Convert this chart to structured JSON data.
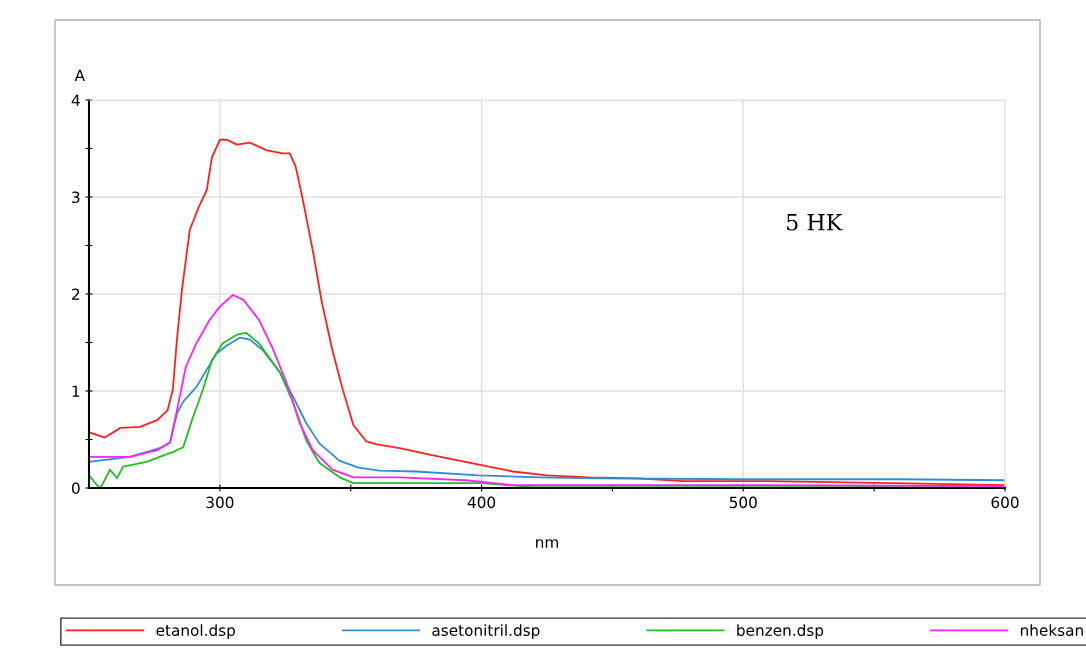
{
  "chart_data": {
    "type": "line",
    "xlabel": "nm",
    "ylabel": "A",
    "xlim": [
      250,
      600
    ],
    "xticks": [
      300,
      {
        "value": 350,
        "label": null
      },
      400,
      {
        "value": 450,
        "label": null
      },
      500,
      {
        "value": 550,
        "label": null
      },
      600
    ],
    "ylim": [
      0,
      4
    ],
    "yticks": [
      0,
      {
        "value": 0.5,
        "label": null
      },
      1,
      {
        "value": 1.5,
        "label": null
      },
      2,
      {
        "value": 2.5,
        "label": null
      },
      3,
      {
        "value": 3.5,
        "label": null
      },
      4
    ],
    "grid": true,
    "legend": "bottom",
    "marker": "none",
    "line_style": "solid",
    "annotations": [
      "5 HK"
    ],
    "series": [
      {
        "name": "etanol.dsp",
        "color": "#ff2020",
        "x": [
          250.4,
          256,
          262,
          269.5,
          276,
          280,
          282,
          283.6,
          285.5,
          288.5,
          292,
          295,
          297,
          300,
          302.7,
          306.5,
          311.5,
          318,
          324,
          326.7,
          329,
          331.7,
          335.5,
          339,
          343,
          347,
          351,
          356,
          360,
          368.7,
          381,
          390,
          399,
          412,
          425,
          441,
          460,
          477,
          509,
          557,
          600
        ],
        "values": [
          0.57,
          0.52,
          0.62,
          0.63,
          0.7,
          0.8,
          1.01,
          1.53,
          2.04,
          2.66,
          2.9,
          3.07,
          3.41,
          3.59,
          3.59,
          3.54,
          3.56,
          3.48,
          3.45,
          3.45,
          3.31,
          2.97,
          2.45,
          1.91,
          1.42,
          1.01,
          0.65,
          0.48,
          0.45,
          0.41,
          0.34,
          0.29,
          0.24,
          0.17,
          0.13,
          0.11,
          0.1,
          0.07,
          0.07,
          0.05,
          0.03
        ]
      },
      {
        "name": "asetonitril.dsp",
        "color": "#2d8fd0",
        "x": [
          250,
          265.6,
          277,
          281,
          283.6,
          286,
          291,
          295,
          298.8,
          302.7,
          307.6,
          311.5,
          316.4,
          323,
          328,
          333,
          338,
          345.8,
          353,
          361,
          375,
          399,
          422,
          445,
          500,
          560,
          600
        ],
        "values": [
          0.27,
          0.32,
          0.41,
          0.47,
          0.77,
          0.89,
          1.04,
          1.22,
          1.39,
          1.47,
          1.55,
          1.53,
          1.42,
          1.19,
          0.94,
          0.67,
          0.46,
          0.28,
          0.21,
          0.18,
          0.17,
          0.13,
          0.11,
          0.1,
          0.09,
          0.09,
          0.08
        ]
      },
      {
        "name": "benzen.dsp",
        "color": "#20c020",
        "x": [
          250,
          254,
          255,
          258,
          260.7,
          263,
          272,
          277,
          282,
          286,
          289.7,
          293.5,
          297,
          301,
          306.5,
          310,
          315,
          323,
          328,
          333,
          338,
          345.8,
          351,
          400,
          420,
          500,
          600
        ],
        "values": [
          0.13,
          0.0,
          0.03,
          0.19,
          0.1,
          0.22,
          0.27,
          0.32,
          0.37,
          0.42,
          0.73,
          1.01,
          1.32,
          1.49,
          1.58,
          1.6,
          1.49,
          1.19,
          0.88,
          0.49,
          0.26,
          0.11,
          0.05,
          0.05,
          0.01,
          0.01,
          0.01
        ]
      },
      {
        "name": "nheksan",
        "color": "#ff20ff",
        "x": [
          250,
          265.6,
          276,
          281,
          283.6,
          287,
          291,
          296,
          300,
          305,
          309,
          315,
          320,
          325.6,
          330.5,
          335.5,
          343,
          351,
          368.7,
          394,
          412,
          500,
          600
        ],
        "values": [
          0.32,
          0.32,
          0.39,
          0.47,
          0.8,
          1.25,
          1.49,
          1.73,
          1.87,
          1.99,
          1.94,
          1.73,
          1.45,
          1.08,
          0.67,
          0.39,
          0.19,
          0.11,
          0.11,
          0.08,
          0.03,
          0.03,
          0.02
        ]
      }
    ]
  }
}
